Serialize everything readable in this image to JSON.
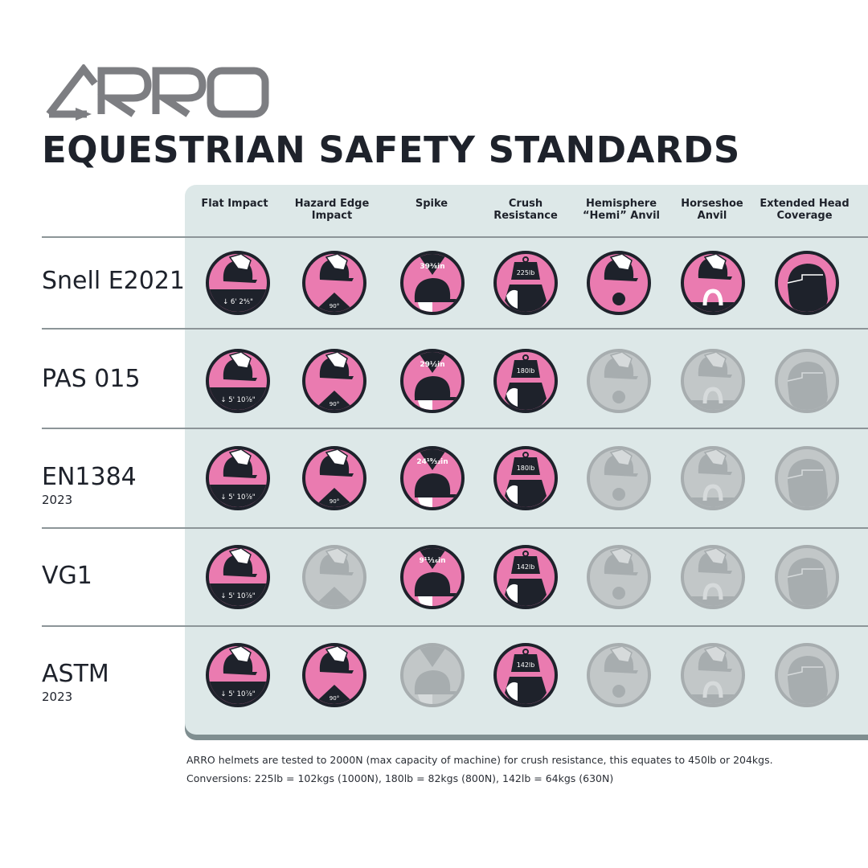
{
  "brand": {
    "logo_text": "ARRO"
  },
  "title": "EQUESTRIAN SAFETY STANDARDS",
  "columns": [
    {
      "key": "flat",
      "label_lines": [
        "Flat Impact",
        ""
      ]
    },
    {
      "key": "hazard",
      "label_lines": [
        "Hazard Edge",
        "Impact"
      ]
    },
    {
      "key": "spike",
      "label_lines": [
        "Spike",
        ""
      ]
    },
    {
      "key": "crush",
      "label_lines": [
        "Crush",
        "Resistance"
      ]
    },
    {
      "key": "hemi",
      "label_lines": [
        "Hemisphere",
        "“Hemi” Anvil"
      ]
    },
    {
      "key": "horseshoe",
      "label_lines": [
        "Horseshoe",
        "Anvil"
      ]
    },
    {
      "key": "extended",
      "label_lines": [
        "Extended Head",
        "Coverage"
      ]
    }
  ],
  "rows": [
    {
      "name": "Snell E2021",
      "year": "",
      "cells": [
        {
          "active": true,
          "label": "6' 2⅘\""
        },
        {
          "active": true,
          "label": "90°"
        },
        {
          "active": true,
          "label": "39⅜in"
        },
        {
          "active": true,
          "label": "225lb"
        },
        {
          "active": true,
          "label": ""
        },
        {
          "active": true,
          "label": ""
        },
        {
          "active": true,
          "label": ""
        }
      ]
    },
    {
      "name": "PAS 015",
      "year": "",
      "cells": [
        {
          "active": true,
          "label": "5' 10⅞\""
        },
        {
          "active": true,
          "label": "90°"
        },
        {
          "active": true,
          "label": "29½in"
        },
        {
          "active": true,
          "label": "180lb"
        },
        {
          "active": false,
          "label": ""
        },
        {
          "active": false,
          "label": ""
        },
        {
          "active": false,
          "label": ""
        }
      ]
    },
    {
      "name": "EN1384",
      "year": "2023",
      "cells": [
        {
          "active": true,
          "label": "5' 10⅞\""
        },
        {
          "active": true,
          "label": "90°"
        },
        {
          "active": true,
          "label": "24¹⁹⁄₃₂in"
        },
        {
          "active": true,
          "label": "180lb"
        },
        {
          "active": false,
          "label": ""
        },
        {
          "active": false,
          "label": ""
        },
        {
          "active": false,
          "label": ""
        }
      ]
    },
    {
      "name": "VG1",
      "year": "",
      "cells": [
        {
          "active": true,
          "label": "5' 10⅞\""
        },
        {
          "active": false,
          "label": ""
        },
        {
          "active": true,
          "label": "9¹¹⁄₁₆in"
        },
        {
          "active": true,
          "label": "142lb"
        },
        {
          "active": false,
          "label": ""
        },
        {
          "active": false,
          "label": ""
        },
        {
          "active": false,
          "label": ""
        }
      ]
    },
    {
      "name": "ASTM",
      "year": "2023",
      "cells": [
        {
          "active": true,
          "label": "5' 10⅞\""
        },
        {
          "active": true,
          "label": "90°"
        },
        {
          "active": false,
          "label": ""
        },
        {
          "active": true,
          "label": "142lb"
        },
        {
          "active": false,
          "label": ""
        },
        {
          "active": false,
          "label": ""
        },
        {
          "active": false,
          "label": ""
        }
      ]
    }
  ],
  "footnotes": [
    "ARRO helmets are tested to 2000N (max capacity of machine) for crush resistance, this equates to 450lb or 204kgs.",
    "Conversions: 225lb = 102kgs (1000N), 180lb = 82kgs (800N), 142lb = 64kgs (630N)"
  ],
  "colors": {
    "pink": "#ea7bb0",
    "navy": "#1e222b",
    "inactive_fill": "#c2c7c8",
    "inactive_dark": "#a7adaf",
    "panel": "#dde8e8"
  }
}
